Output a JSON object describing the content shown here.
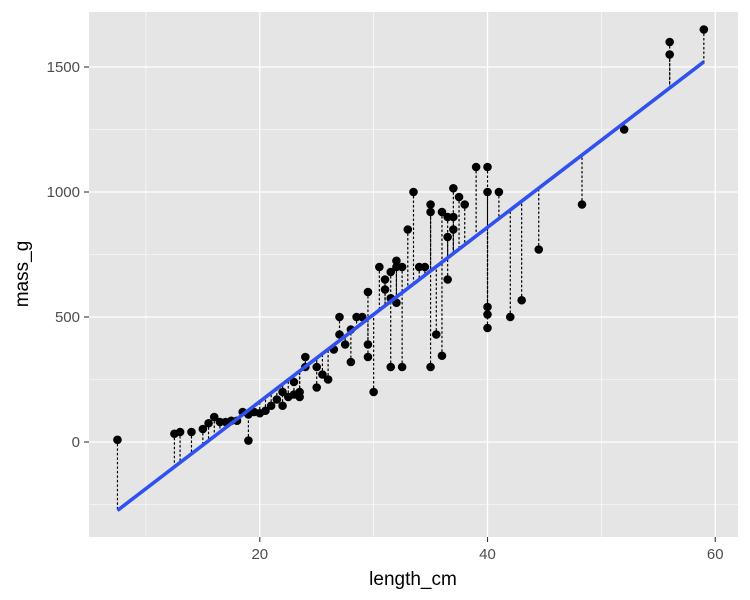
{
  "chart_data": {
    "type": "scatter",
    "title": "",
    "xlabel": "length_cm",
    "ylabel": "mass_g",
    "xlim": [
      5,
      62
    ],
    "ylim": [
      -380,
      1720
    ],
    "x_ticks_major": [
      20,
      40,
      60
    ],
    "x_ticks_minor": [
      10,
      30,
      50
    ],
    "y_ticks_major": [
      0,
      500,
      1000,
      1500
    ],
    "y_ticks_minor": [
      -250,
      250,
      750,
      1250
    ],
    "x_tick_labels": [
      "20",
      "40",
      "60"
    ],
    "y_tick_labels": [
      "0",
      "500",
      "1000",
      "1500"
    ],
    "grid": true,
    "background": "#e5e5e5",
    "gridline_color": "#ffffff",
    "point_color": "#000000",
    "fit_line_color": "#3050f0",
    "residual_style": "dotted",
    "regression": {
      "slope": 34.84,
      "intercept": -535.0,
      "x_range": [
        7.5,
        59.0
      ]
    },
    "series": [
      {
        "points": [
          [
            7.5,
            8.7
          ],
          [
            12.5,
            33
          ],
          [
            13.0,
            40
          ],
          [
            14.0,
            40
          ],
          [
            15.0,
            52
          ],
          [
            15.5,
            75
          ],
          [
            16.0,
            100
          ],
          [
            16.5,
            80
          ],
          [
            17.0,
            80
          ],
          [
            17.5,
            85
          ],
          [
            18.0,
            85
          ],
          [
            18.5,
            120
          ],
          [
            19.0,
            5.9
          ],
          [
            19.0,
            110
          ],
          [
            19.5,
            120
          ],
          [
            20.0,
            115
          ],
          [
            20.5,
            125
          ],
          [
            21.0,
            145
          ],
          [
            21.5,
            170
          ],
          [
            22.0,
            200
          ],
          [
            22.0,
            145
          ],
          [
            22.5,
            180
          ],
          [
            23.0,
            190
          ],
          [
            23.0,
            240
          ],
          [
            23.5,
            180
          ],
          [
            23.5,
            200
          ],
          [
            24.0,
            340
          ],
          [
            24.0,
            300
          ],
          [
            25.0,
            218
          ],
          [
            25.0,
            300
          ],
          [
            25.5,
            270
          ],
          [
            26.0,
            250
          ],
          [
            26.5,
            370
          ],
          [
            27.0,
            430
          ],
          [
            27.0,
            500
          ],
          [
            27.5,
            390
          ],
          [
            28.0,
            320
          ],
          [
            28.0,
            450
          ],
          [
            28.5,
            500
          ],
          [
            29.0,
            500
          ],
          [
            29.5,
            390
          ],
          [
            29.5,
            340
          ],
          [
            29.5,
            600
          ],
          [
            30.0,
            200
          ],
          [
            30.5,
            700
          ],
          [
            31.0,
            650
          ],
          [
            31.0,
            610
          ],
          [
            31.5,
            680
          ],
          [
            31.5,
            575
          ],
          [
            31.5,
            300
          ],
          [
            32.0,
            700
          ],
          [
            32.0,
            725
          ],
          [
            32.0,
            557
          ],
          [
            32.5,
            700
          ],
          [
            32.5,
            300
          ],
          [
            33.0,
            850
          ],
          [
            33.5,
            1000
          ],
          [
            34.0,
            700
          ],
          [
            34.5,
            700
          ],
          [
            35.0,
            300
          ],
          [
            35.0,
            950
          ],
          [
            35.0,
            920
          ],
          [
            35.5,
            430
          ],
          [
            36.0,
            345
          ],
          [
            36.0,
            920
          ],
          [
            36.5,
            650
          ],
          [
            36.5,
            900
          ],
          [
            36.5,
            820
          ],
          [
            37.0,
            850
          ],
          [
            37.0,
            1015
          ],
          [
            37.0,
            900
          ],
          [
            37.5,
            980
          ],
          [
            38.0,
            950
          ],
          [
            39.0,
            1100
          ],
          [
            40.0,
            1000
          ],
          [
            40.0,
            1100
          ],
          [
            40.0,
            456
          ],
          [
            40.0,
            510
          ],
          [
            40.0,
            540
          ],
          [
            41.0,
            1000
          ],
          [
            42.0,
            500
          ],
          [
            43.0,
            567
          ],
          [
            44.5,
            770
          ],
          [
            48.3,
            950
          ],
          [
            52.0,
            1250
          ],
          [
            56.0,
            1550
          ],
          [
            56.0,
            1600
          ],
          [
            59.0,
            1650
          ]
        ]
      }
    ]
  }
}
